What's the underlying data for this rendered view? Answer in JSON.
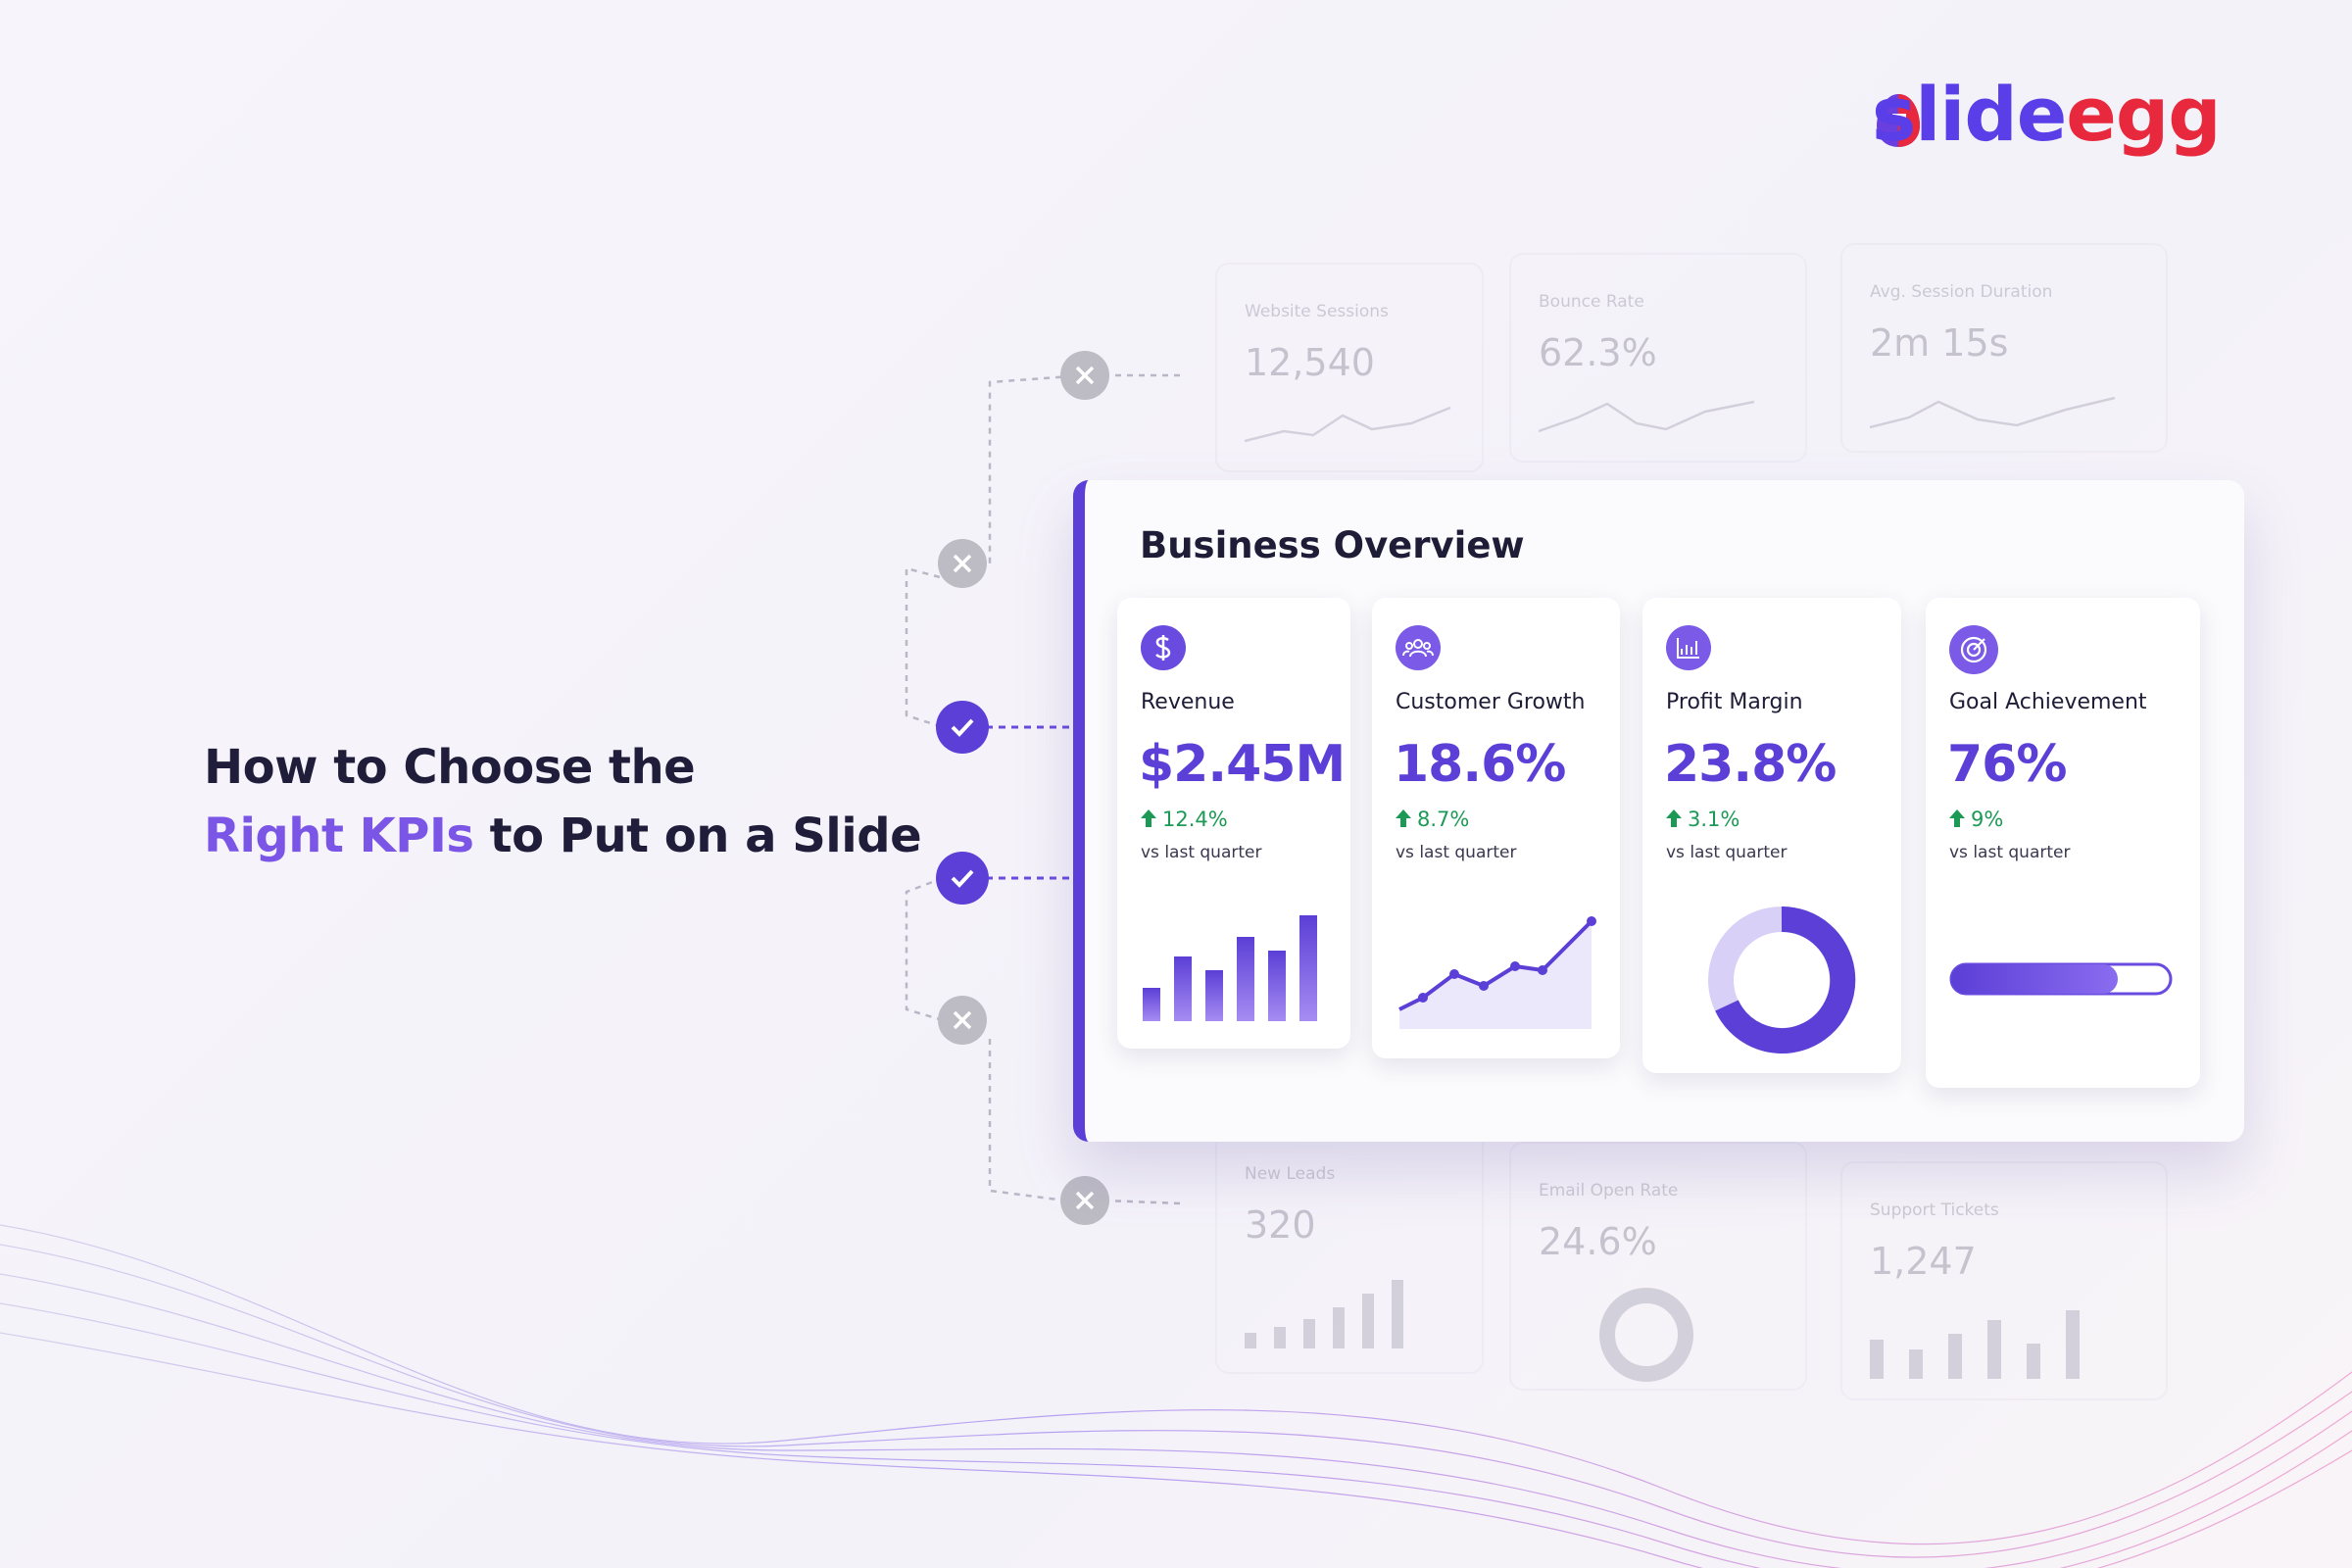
{
  "brand": {
    "part1": "slide",
    "part2": "egg"
  },
  "headline": {
    "line1": "How to Choose the",
    "highlight": "Right KPIs",
    "line2_rest": "to Put on a Slide"
  },
  "faded_cards": [
    {
      "label": "Website Sessions",
      "value": "12,540"
    },
    {
      "label": "Bounce Rate",
      "value": "62.3%"
    },
    {
      "label": "Avg. Session Duration",
      "value": "2m 15s"
    },
    {
      "label": "New Leads",
      "value": "320"
    },
    {
      "label": "Email Open Rate",
      "value": "24.6%"
    },
    {
      "label": "Support Tickets",
      "value": "1,247"
    }
  ],
  "panel": {
    "title": "Business Overview",
    "kpis": [
      {
        "label": "Revenue",
        "value": "$2.45M",
        "change": "12.4%",
        "note": "vs last quarter"
      },
      {
        "label": "Customer Growth",
        "value": "18.6%",
        "change": "8.7%",
        "note": "vs last quarter"
      },
      {
        "label": "Profit Margin",
        "value": "23.8%",
        "change": "3.1%",
        "note": "vs last quarter"
      },
      {
        "label": "Goal Achievement",
        "value": "76%",
        "change": "9%",
        "note": "vs last quarter"
      }
    ]
  }
}
